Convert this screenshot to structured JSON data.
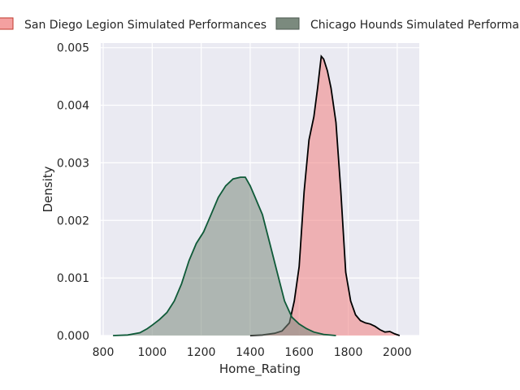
{
  "chart_data": {
    "type": "area",
    "subtype": "kde-density",
    "xlabel": "Home_Rating",
    "ylabel": "Density",
    "xlim": [
      790,
      2090
    ],
    "ylim": [
      0,
      0.00508
    ],
    "x_ticks": [
      800,
      1000,
      1200,
      1400,
      1600,
      1800,
      2000
    ],
    "x_tick_labels": [
      "800",
      "1000",
      "1200",
      "1400",
      "1600",
      "1800",
      "2000"
    ],
    "y_ticks": [
      0,
      0.001,
      0.002,
      0.003,
      0.004,
      0.005
    ],
    "y_tick_labels": [
      "0.000",
      "0.001",
      "0.002",
      "0.003",
      "0.004",
      "0.005"
    ],
    "grid": true,
    "legend_position": "top",
    "background": "#eaeaf2",
    "series": [
      {
        "name": "San Diego Legion Simulated Performances",
        "fill": "#f08080",
        "line": "#000000",
        "points": [
          [
            1400,
            0.0
          ],
          [
            1450,
            1e-05
          ],
          [
            1500,
            4e-05
          ],
          [
            1530,
            8e-05
          ],
          [
            1560,
            0.00022
          ],
          [
            1580,
            0.0006
          ],
          [
            1600,
            0.0012
          ],
          [
            1620,
            0.0025
          ],
          [
            1640,
            0.0034
          ],
          [
            1660,
            0.0038
          ],
          [
            1675,
            0.0043
          ],
          [
            1690,
            0.00485
          ],
          [
            1700,
            0.0048
          ],
          [
            1715,
            0.0046
          ],
          [
            1730,
            0.0043
          ],
          [
            1750,
            0.0037
          ],
          [
            1770,
            0.0025
          ],
          [
            1790,
            0.0011
          ],
          [
            1810,
            0.0006
          ],
          [
            1830,
            0.00036
          ],
          [
            1850,
            0.00026
          ],
          [
            1870,
            0.00022
          ],
          [
            1890,
            0.0002
          ],
          [
            1910,
            0.00016
          ],
          [
            1930,
            0.0001
          ],
          [
            1950,
            6e-05
          ],
          [
            1970,
            7e-05
          ],
          [
            1990,
            3e-05
          ],
          [
            2010,
            0.0
          ]
        ]
      },
      {
        "name": "Chicago Hounds Simulated Performances",
        "fill": "#7b8a7e",
        "line": "#0e5a38",
        "points": [
          [
            840,
            0.0
          ],
          [
            900,
            1e-05
          ],
          [
            950,
            5e-05
          ],
          [
            980,
            0.00012
          ],
          [
            1000,
            0.00018
          ],
          [
            1030,
            0.00028
          ],
          [
            1060,
            0.0004
          ],
          [
            1090,
            0.0006
          ],
          [
            1120,
            0.0009
          ],
          [
            1150,
            0.0013
          ],
          [
            1180,
            0.0016
          ],
          [
            1210,
            0.0018
          ],
          [
            1240,
            0.0021
          ],
          [
            1270,
            0.0024
          ],
          [
            1300,
            0.0026
          ],
          [
            1330,
            0.00272
          ],
          [
            1360,
            0.00275
          ],
          [
            1380,
            0.00275
          ],
          [
            1400,
            0.0026
          ],
          [
            1420,
            0.0024
          ],
          [
            1450,
            0.0021
          ],
          [
            1480,
            0.0016
          ],
          [
            1510,
            0.0011
          ],
          [
            1540,
            0.0006
          ],
          [
            1570,
            0.00032
          ],
          [
            1600,
            0.0002
          ],
          [
            1630,
            0.00012
          ],
          [
            1660,
            6e-05
          ],
          [
            1700,
            2e-05
          ],
          [
            1750,
            0.0
          ]
        ]
      }
    ]
  }
}
